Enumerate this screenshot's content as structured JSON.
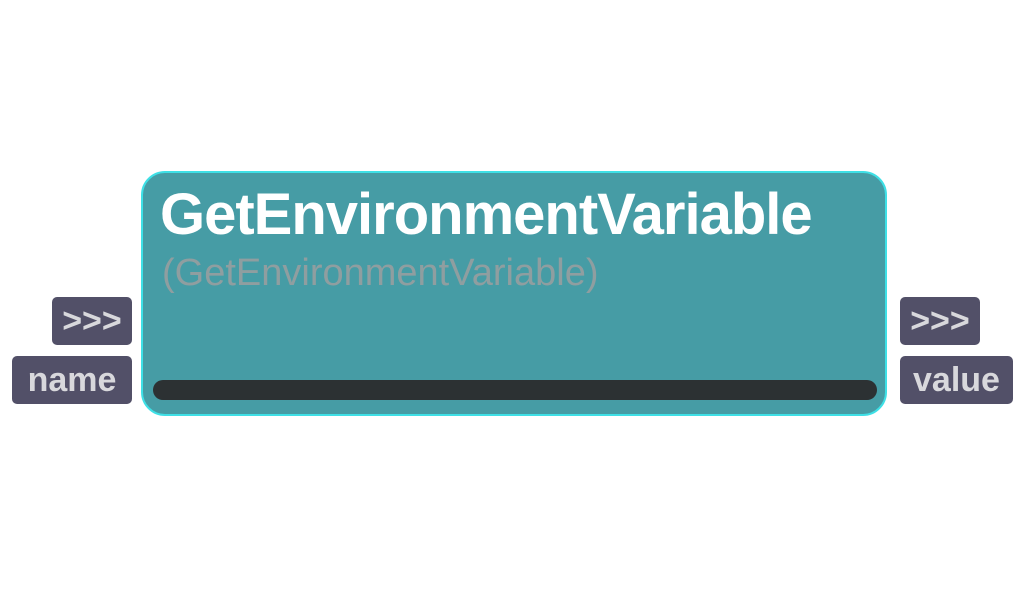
{
  "node": {
    "title": "GetEnvironmentVariable",
    "subtitle": "(GetEnvironmentVariable)"
  },
  "inputs": [
    {
      "label": ">>>"
    },
    {
      "label": "name"
    }
  ],
  "outputs": [
    {
      "label": ">>>"
    },
    {
      "label": "value"
    }
  ],
  "colors": {
    "node_fill": "#469ca5",
    "node_border": "#3ee0e6",
    "port_fill": "#525068",
    "port_text": "#d8d8dc",
    "title_text": "#ffffff",
    "subtitle_text": "#8f9ea0",
    "bar_fill": "#2c3133"
  }
}
